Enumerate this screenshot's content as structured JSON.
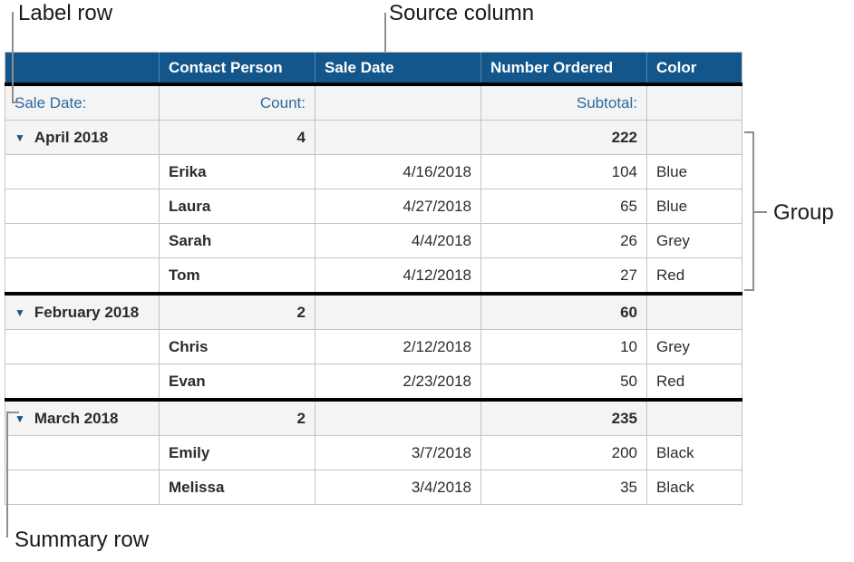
{
  "callouts": {
    "label_row": "Label row",
    "source_column": "Source column",
    "group": "Group",
    "summary_row": "Summary row"
  },
  "table": {
    "columns": [
      "",
      "Contact Person",
      "Sale Date",
      "Number Ordered",
      "Color"
    ],
    "label_row": {
      "category": "Sale Date:",
      "count": "Count:",
      "subtotal": "Subtotal:"
    },
    "groups": [
      {
        "name": "April 2018",
        "count": "4",
        "subtotal": "222",
        "rows": [
          {
            "contact": "Erika",
            "date": "4/16/2018",
            "number": "104",
            "color": "Blue"
          },
          {
            "contact": "Laura",
            "date": "4/27/2018",
            "number": "65",
            "color": "Blue"
          },
          {
            "contact": "Sarah",
            "date": "4/4/2018",
            "number": "26",
            "color": "Grey"
          },
          {
            "contact": "Tom",
            "date": "4/12/2018",
            "number": "27",
            "color": "Red"
          }
        ]
      },
      {
        "name": "February 2018",
        "count": "2",
        "subtotal": "60",
        "rows": [
          {
            "contact": "Chris",
            "date": "2/12/2018",
            "number": "10",
            "color": "Grey"
          },
          {
            "contact": "Evan",
            "date": "2/23/2018",
            "number": "50",
            "color": "Red"
          }
        ]
      },
      {
        "name": "March 2018",
        "count": "2",
        "subtotal": "235",
        "rows": [
          {
            "contact": "Emily",
            "date": "3/7/2018",
            "number": "200",
            "color": "Black"
          },
          {
            "contact": "Melissa",
            "date": "3/4/2018",
            "number": "35",
            "color": "Black"
          }
        ]
      }
    ]
  },
  "icons": {
    "disclosure": "▼"
  },
  "colors": {
    "header_bg": "#12568c",
    "header_text": "#ffffff",
    "label_text": "#2b6a9f",
    "summary_text": "#14568a",
    "summary_bg": "#f4f4f4",
    "band": "#e9e9e9",
    "grid": "#c4c4c4",
    "separator": "#000000",
    "data_text": "#2b2b2b",
    "callout_line": "#8e8e8e",
    "callout_text": "#1a1a1a"
  }
}
